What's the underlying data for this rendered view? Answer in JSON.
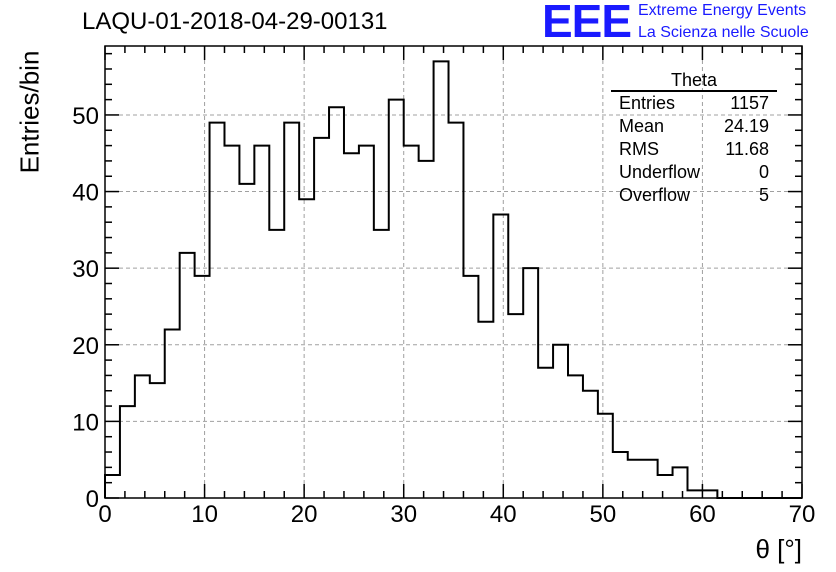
{
  "header": {
    "title": "LAQU-01-2018-04-29-00131"
  },
  "logo": {
    "mark": "EEE",
    "line1": "Extreme Energy Events",
    "line2": "La Scienza nelle Scuole"
  },
  "stats_box": {
    "title": "Theta",
    "rows": [
      {
        "label": "Entries",
        "value": "1157"
      },
      {
        "label": "Mean",
        "value": "24.19"
      },
      {
        "label": "RMS",
        "value": "11.68"
      },
      {
        "label": "Underflow",
        "value": "0"
      },
      {
        "label": "Overflow",
        "value": "5"
      }
    ]
  },
  "colors": {
    "line": "#000000",
    "grid": "#a0a0a0",
    "logo": "#1a1aff"
  },
  "chart_data": {
    "type": "histogram",
    "title": "LAQU-01-2018-04-29-00131",
    "xlabel": "θ [°]",
    "ylabel": "Entries/bin",
    "xlim": [
      0,
      70
    ],
    "ylim": [
      0,
      59
    ],
    "grid": true,
    "legend": "top-right",
    "x_ticks": [
      0,
      10,
      20,
      30,
      40,
      50,
      60,
      70
    ],
    "y_ticks": [
      0,
      10,
      20,
      30,
      40,
      50
    ],
    "bin_edges": [
      0,
      1.5,
      3,
      4.5,
      6,
      7.5,
      9,
      10.5,
      12,
      13.5,
      15,
      16.5,
      18,
      19.5,
      21,
      22.5,
      24,
      25.5,
      27,
      28.5,
      30,
      31.5,
      33,
      34.5,
      36,
      37.5,
      39,
      40.5,
      42,
      43.5,
      45,
      46.5,
      48,
      49.5,
      51,
      52.5,
      54,
      55.5,
      57,
      58.5,
      60,
      61.5,
      63,
      64.5,
      66,
      67.5,
      70
    ],
    "values": [
      3,
      12,
      16,
      15,
      22,
      32,
      29,
      49,
      46,
      41,
      46,
      35,
      49,
      39,
      47,
      51,
      45,
      46,
      35,
      52,
      46,
      44,
      57,
      49,
      29,
      23,
      37,
      24,
      30,
      17,
      20,
      16,
      14,
      11,
      6,
      5,
      5,
      3,
      4,
      1,
      1,
      0,
      0,
      0,
      0,
      0
    ]
  }
}
